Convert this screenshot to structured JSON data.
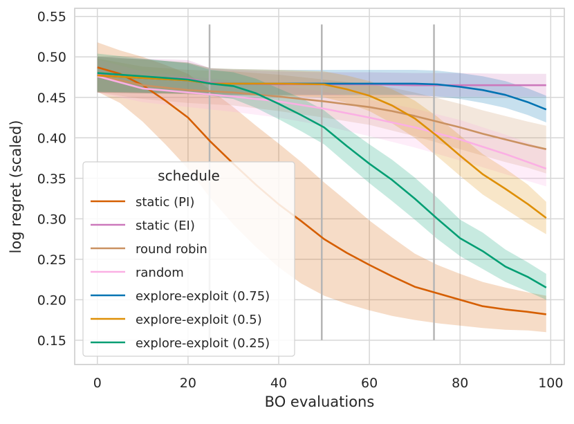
{
  "chart_data": {
    "type": "line",
    "xlabel": "BO evaluations",
    "ylabel": "log regret (scaled)",
    "xlim": [
      -5,
      103
    ],
    "ylim": [
      0.12,
      0.56
    ],
    "x_ticks": [
      0,
      20,
      40,
      60,
      80,
      100
    ],
    "y_ticks": [
      0.15,
      0.2,
      0.25,
      0.3,
      0.35,
      0.4,
      0.45,
      0.5,
      0.55
    ],
    "grid": true,
    "vlines": [
      {
        "x": 24.75,
        "y_range": [
          0.15,
          0.54
        ]
      },
      {
        "x": 49.5,
        "y_range": [
          0.15,
          0.54
        ]
      },
      {
        "x": 74.25,
        "y_range": [
          0.15,
          0.54
        ]
      }
    ],
    "legend": {
      "title": "schedule",
      "placement": "lower-left"
    },
    "series": [
      {
        "name": "static (PI)",
        "color": "#d55e00",
        "x": [
          0,
          5,
          10,
          15,
          20,
          25,
          30,
          35,
          40,
          45,
          50,
          55,
          60,
          65,
          70,
          75,
          80,
          85,
          90,
          95,
          99
        ],
        "y": [
          0.487,
          0.479,
          0.465,
          0.446,
          0.425,
          0.395,
          0.368,
          0.342,
          0.318,
          0.297,
          0.275,
          0.258,
          0.243,
          0.229,
          0.216,
          0.208,
          0.2,
          0.192,
          0.188,
          0.185,
          0.182
        ],
        "lower": [
          0.457,
          0.443,
          0.42,
          0.392,
          0.362,
          0.325,
          0.293,
          0.265,
          0.24,
          0.22,
          0.205,
          0.195,
          0.187,
          0.18,
          0.175,
          0.171,
          0.168,
          0.165,
          0.163,
          0.162,
          0.16
        ],
        "upper": [
          0.518,
          0.508,
          0.5,
          0.49,
          0.479,
          0.459,
          0.438,
          0.415,
          0.393,
          0.37,
          0.345,
          0.322,
          0.298,
          0.277,
          0.257,
          0.243,
          0.232,
          0.222,
          0.215,
          0.209,
          0.205
        ]
      },
      {
        "name": "static (EI)",
        "color": "#cc78bc",
        "x": [
          0,
          10,
          20,
          25,
          30,
          40,
          50,
          60,
          70,
          80,
          90,
          99
        ],
        "y": [
          0.478,
          0.475,
          0.473,
          0.468,
          0.467,
          0.466,
          0.466,
          0.466,
          0.465,
          0.465,
          0.465,
          0.465
        ],
        "lower": [
          0.456,
          0.455,
          0.455,
          0.453,
          0.452,
          0.452,
          0.452,
          0.451,
          0.451,
          0.451,
          0.451,
          0.451
        ],
        "upper": [
          0.5,
          0.498,
          0.496,
          0.486,
          0.484,
          0.482,
          0.481,
          0.481,
          0.48,
          0.48,
          0.479,
          0.479
        ]
      },
      {
        "name": "round robin",
        "color": "#ca9161",
        "x": [
          0,
          10,
          20,
          30,
          40,
          50,
          60,
          65,
          70,
          75,
          80,
          85,
          90,
          95,
          99
        ],
        "y": [
          0.477,
          0.465,
          0.459,
          0.456,
          0.451,
          0.445,
          0.438,
          0.433,
          0.427,
          0.42,
          0.413,
          0.405,
          0.398,
          0.391,
          0.386
        ],
        "lower": [
          0.456,
          0.448,
          0.443,
          0.44,
          0.433,
          0.425,
          0.416,
          0.409,
          0.402,
          0.394,
          0.386,
          0.378,
          0.37,
          0.363,
          0.356
        ],
        "upper": [
          0.498,
          0.488,
          0.484,
          0.482,
          0.478,
          0.472,
          0.466,
          0.462,
          0.456,
          0.449,
          0.442,
          0.434,
          0.427,
          0.42,
          0.415
        ]
      },
      {
        "name": "random",
        "color": "#fbafe4",
        "x": [
          0,
          10,
          20,
          30,
          40,
          50,
          60,
          70,
          80,
          90,
          99
        ],
        "y": [
          0.476,
          0.461,
          0.456,
          0.451,
          0.445,
          0.436,
          0.425,
          0.413,
          0.398,
          0.38,
          0.362
        ],
        "lower": [
          0.456,
          0.444,
          0.438,
          0.432,
          0.425,
          0.415,
          0.402,
          0.388,
          0.372,
          0.355,
          0.34
        ],
        "upper": [
          0.497,
          0.482,
          0.476,
          0.471,
          0.465,
          0.457,
          0.447,
          0.436,
          0.422,
          0.404,
          0.386
        ]
      },
      {
        "name": "explore-exploit (0.75)",
        "color": "#0173b2",
        "x": [
          0,
          10,
          20,
          25,
          30,
          40,
          50,
          60,
          70,
          75,
          80,
          85,
          90,
          95,
          99
        ],
        "y": [
          0.477,
          0.474,
          0.471,
          0.467,
          0.467,
          0.467,
          0.467,
          0.467,
          0.467,
          0.466,
          0.463,
          0.459,
          0.453,
          0.444,
          0.435
        ],
        "lower": [
          0.456,
          0.455,
          0.454,
          0.453,
          0.453,
          0.453,
          0.453,
          0.453,
          0.453,
          0.451,
          0.448,
          0.443,
          0.437,
          0.428,
          0.419
        ],
        "upper": [
          0.5,
          0.497,
          0.493,
          0.486,
          0.485,
          0.484,
          0.484,
          0.484,
          0.484,
          0.483,
          0.48,
          0.476,
          0.47,
          0.461,
          0.452
        ]
      },
      {
        "name": "explore-exploit (0.5)",
        "color": "#de8f05",
        "x": [
          0,
          10,
          20,
          25,
          30,
          40,
          50,
          55,
          60,
          65,
          70,
          75,
          80,
          85,
          90,
          95,
          99
        ],
        "y": [
          0.477,
          0.474,
          0.471,
          0.467,
          0.467,
          0.467,
          0.466,
          0.46,
          0.452,
          0.44,
          0.424,
          0.402,
          0.378,
          0.355,
          0.337,
          0.318,
          0.301
        ],
        "lower": [
          0.456,
          0.455,
          0.454,
          0.453,
          0.453,
          0.452,
          0.45,
          0.443,
          0.433,
          0.418,
          0.4,
          0.377,
          0.353,
          0.33,
          0.312,
          0.294,
          0.281
        ],
        "upper": [
          0.5,
          0.497,
          0.493,
          0.486,
          0.485,
          0.484,
          0.482,
          0.477,
          0.47,
          0.46,
          0.446,
          0.426,
          0.403,
          0.38,
          0.362,
          0.342,
          0.321
        ]
      },
      {
        "name": "explore-exploit (0.25)",
        "color": "#029e73",
        "x": [
          0,
          10,
          20,
          25,
          30,
          35,
          40,
          45,
          50,
          55,
          60,
          65,
          70,
          75,
          80,
          85,
          90,
          95,
          99
        ],
        "y": [
          0.48,
          0.476,
          0.472,
          0.467,
          0.464,
          0.455,
          0.442,
          0.428,
          0.413,
          0.39,
          0.368,
          0.348,
          0.325,
          0.3,
          0.276,
          0.26,
          0.241,
          0.228,
          0.215
        ],
        "lower": [
          0.457,
          0.456,
          0.455,
          0.452,
          0.448,
          0.437,
          0.423,
          0.408,
          0.392,
          0.368,
          0.344,
          0.322,
          0.299,
          0.275,
          0.254,
          0.238,
          0.222,
          0.21,
          0.2
        ],
        "upper": [
          0.504,
          0.498,
          0.492,
          0.484,
          0.481,
          0.473,
          0.461,
          0.449,
          0.434,
          0.412,
          0.392,
          0.373,
          0.351,
          0.326,
          0.299,
          0.283,
          0.262,
          0.246,
          0.232
        ]
      }
    ]
  }
}
